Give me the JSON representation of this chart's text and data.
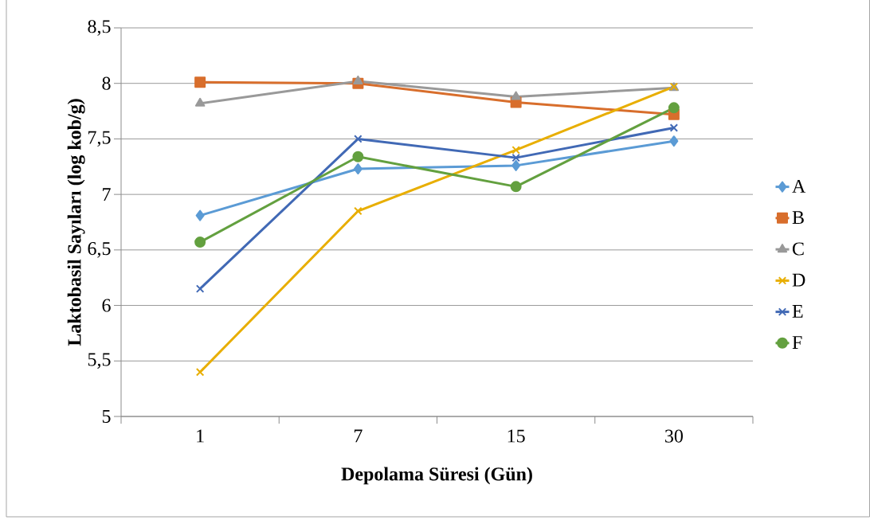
{
  "chart_data": {
    "type": "line",
    "xlabel": "Depolama Süresi (Gün)",
    "ylabel": "Laktobasil Sayıları (log kob/g)",
    "categories": [
      "1",
      "7",
      "15",
      "30"
    ],
    "ylim": [
      5,
      8.5
    ],
    "yticks": [
      5,
      {
        "value": 5.5,
        "label": "5,5"
      },
      6,
      {
        "value": 6.5,
        "label": "6,5"
      },
      7,
      {
        "value": 7.5,
        "label": "7,5"
      },
      8,
      {
        "value": 8.5,
        "label": "8,5"
      }
    ],
    "grid": "y",
    "legend": "right",
    "line_style": "solid",
    "series": [
      {
        "name": "A",
        "color": "#5b9bd5",
        "marker": "diamond",
        "values": [
          6.81,
          7.23,
          7.26,
          7.48
        ]
      },
      {
        "name": "B",
        "color": "#d86e2c",
        "marker": "square",
        "values": [
          8.01,
          8.0,
          7.83,
          7.72
        ]
      },
      {
        "name": "C",
        "color": "#999999",
        "marker": "triangle",
        "values": [
          7.82,
          8.02,
          7.88,
          7.96
        ]
      },
      {
        "name": "D",
        "color": "#e8ae00",
        "marker": "cross",
        "values": [
          5.4,
          6.85,
          7.4,
          7.97
        ]
      },
      {
        "name": "E",
        "color": "#4169b5",
        "marker": "cross",
        "values": [
          6.15,
          7.5,
          7.33,
          7.6
        ]
      },
      {
        "name": "F",
        "color": "#63a03f",
        "marker": "circle",
        "values": [
          6.57,
          7.34,
          7.07,
          7.78
        ]
      }
    ]
  }
}
